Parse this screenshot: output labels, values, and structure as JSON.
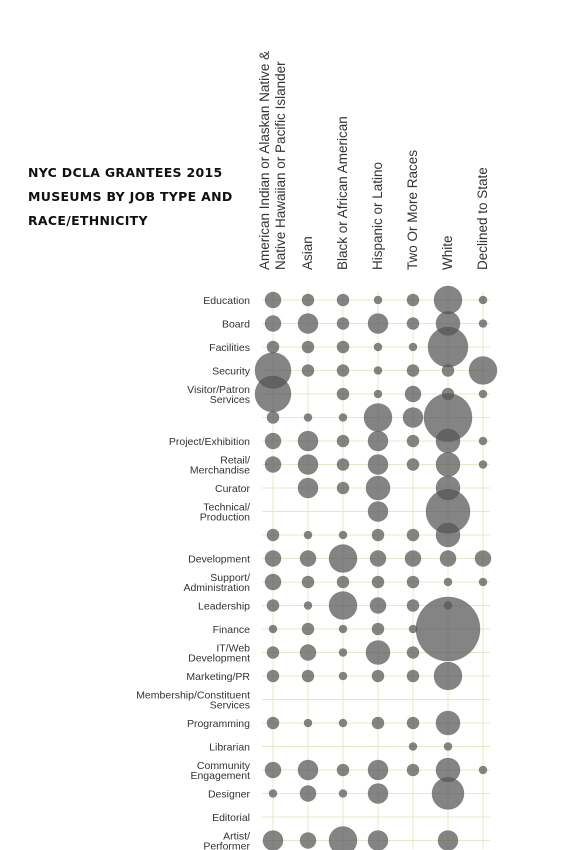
{
  "chart_data": {
    "type": "bubble",
    "title_lines": [
      "NYC DCLA GRANTEES 2015",
      "MUSEUMS BY JOB TYPE AND",
      "RACE/ETHNICITY"
    ],
    "columns": [
      [
        "American Indian or Alaskan Native &",
        "Native Hawaiian or Pacific Islander"
      ],
      [
        "Asian"
      ],
      [
        "Black or African American"
      ],
      [
        "Hispanic or Latino"
      ],
      [
        "Two Or More Races"
      ],
      [
        "White"
      ],
      [
        "Declined to State"
      ]
    ],
    "rows": [
      [
        "Education"
      ],
      [
        "Board"
      ],
      [
        "Facilities"
      ],
      [
        "Security"
      ],
      [
        "Visitor/Patron",
        "Services"
      ],
      [],
      [
        "Project/Exhibition"
      ],
      [
        "Retail/",
        "Merchandise"
      ],
      [
        "Curator"
      ],
      [
        "Technical/",
        "Production"
      ],
      [],
      [
        "Development"
      ],
      [
        "Support/",
        "Administration"
      ],
      [
        "Leadership"
      ],
      [
        "Finance"
      ],
      [
        "IT/Web",
        "Development"
      ],
      [
        "Marketing/PR"
      ],
      [
        "Membership/Constituent",
        "Services"
      ],
      [
        "Programming"
      ],
      [
        "Librarian"
      ],
      [
        "Community",
        "Engagement"
      ],
      [
        "Designer"
      ],
      [
        "Editorial"
      ],
      [
        "Artist/",
        "Performer"
      ]
    ],
    "size_scale": "relative bubble diameter; 1 = smallest dot",
    "values": [
      [
        2,
        1.5,
        1.5,
        1,
        1.5,
        3.5,
        1
      ],
      [
        2,
        2.5,
        1.5,
        2.5,
        1.5,
        3,
        1
      ],
      [
        1.5,
        1.5,
        1.5,
        1,
        1,
        5,
        0
      ],
      [
        4.5,
        1.5,
        1.5,
        1,
        1.5,
        1.5,
        3.5
      ],
      [
        4.5,
        0,
        1.5,
        1,
        2,
        1.5,
        1
      ],
      [
        1.5,
        1,
        1,
        3.5,
        2.5,
        6,
        0
      ],
      [
        2,
        2.5,
        1.5,
        2.5,
        1.5,
        3,
        1
      ],
      [
        2,
        2.5,
        1.5,
        2.5,
        1.5,
        3,
        1
      ],
      [
        0,
        2.5,
        1.5,
        3,
        0,
        3,
        0
      ],
      [
        0,
        0,
        0,
        2.5,
        0,
        5.5,
        0
      ],
      [
        1.5,
        1,
        1,
        1.5,
        1.5,
        3,
        0
      ],
      [
        2,
        2,
        3.5,
        2,
        2,
        2,
        2
      ],
      [
        2,
        1.5,
        1.5,
        1.5,
        1.5,
        1,
        1
      ],
      [
        1.5,
        1,
        3.5,
        2,
        1.5,
        1,
        0
      ],
      [
        1,
        1.5,
        1,
        1.5,
        1,
        8,
        0
      ],
      [
        1.5,
        2,
        1,
        3,
        1.5,
        0,
        0
      ],
      [
        1.5,
        1.5,
        1,
        1.5,
        1.5,
        3.5,
        0
      ],
      [
        0,
        0,
        0,
        0,
        0,
        0,
        0
      ],
      [
        1.5,
        1,
        1,
        1.5,
        1.5,
        3,
        0
      ],
      [
        0,
        0,
        0,
        0,
        1,
        1,
        0
      ],
      [
        2,
        2.5,
        1.5,
        2.5,
        1.5,
        3,
        1
      ],
      [
        1,
        2,
        1,
        2.5,
        0,
        4,
        0
      ],
      [
        0,
        0,
        0,
        0,
        0,
        0,
        0
      ],
      [
        2.5,
        2,
        3.5,
        2.5,
        0,
        2.5,
        0
      ]
    ],
    "colors": {
      "bubble": "#555555",
      "grid": "#e6e8c8",
      "text": "#333333"
    }
  }
}
